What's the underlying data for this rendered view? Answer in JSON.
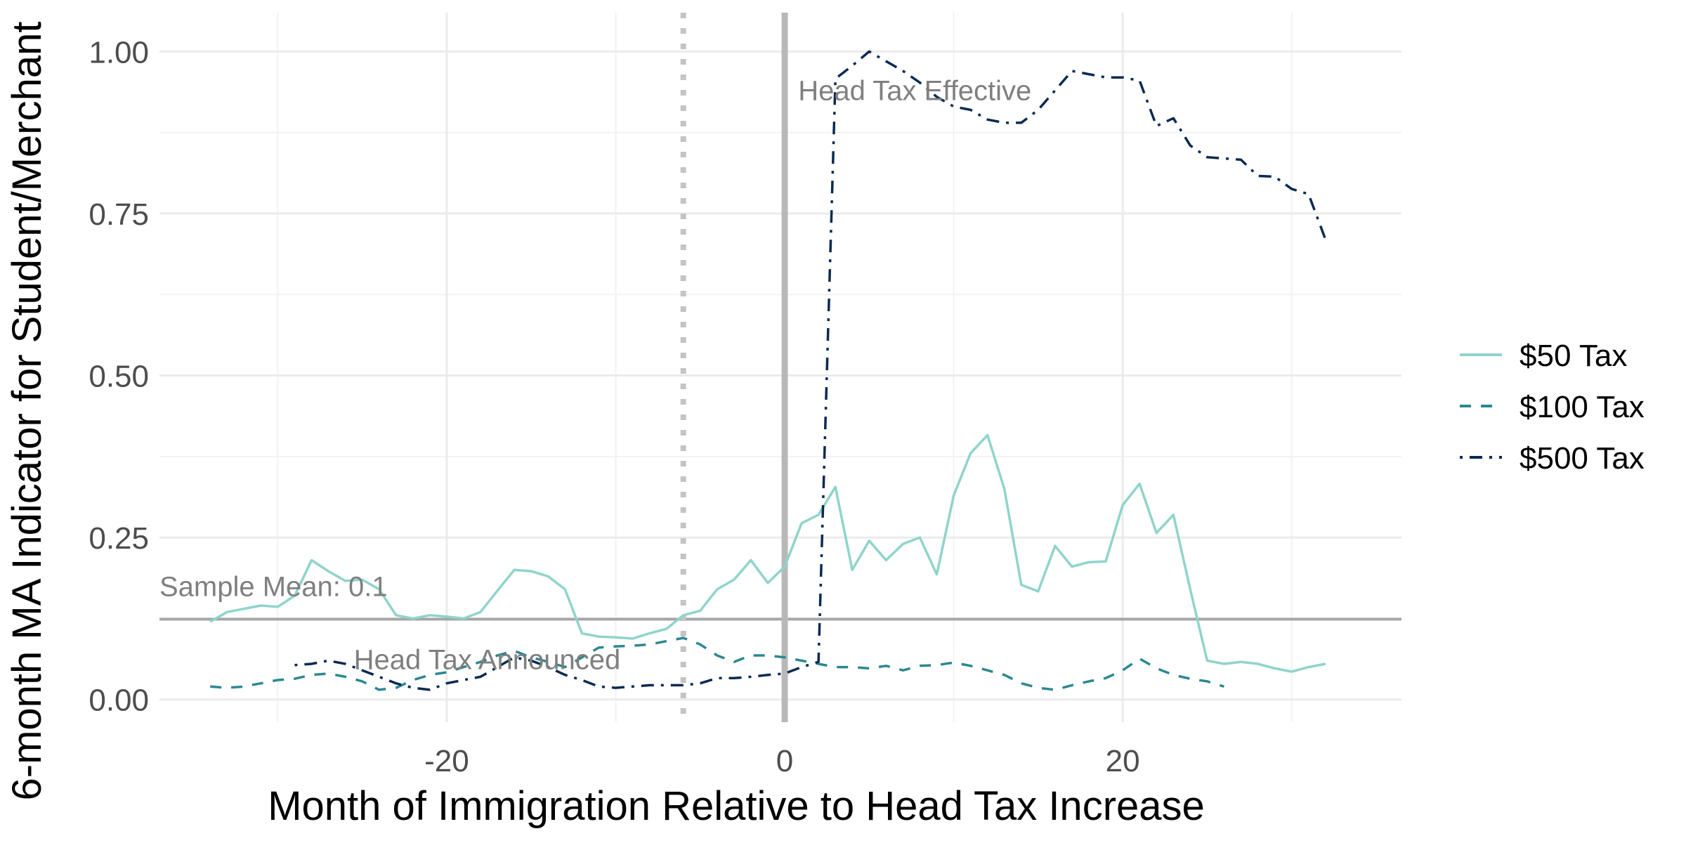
{
  "chart_data": {
    "type": "line",
    "title": "",
    "xlabel": "Month of Immigration Relative to Head Tax Increase",
    "ylabel": "6-month MA Indicator for Student/Merchant",
    "xlim": [
      -37,
      36.5
    ],
    "ylim": [
      -0.035,
      1.06
    ],
    "x_ticks": [
      -20,
      0,
      20
    ],
    "x_tick_labels": [
      "-20",
      "0",
      "20"
    ],
    "y_ticks": [
      0,
      0.25,
      0.5,
      0.75,
      1.0
    ],
    "y_tick_labels": [
      "0.00",
      "0.25",
      "0.50",
      "0.75",
      "1.00"
    ],
    "grid": true,
    "legend_position": "right",
    "series": [
      {
        "name": "$50 Tax",
        "color": "#8fd4cb",
        "dash": "solid",
        "x": [
          -34,
          -33,
          -32,
          -31,
          -30,
          -29,
          -28,
          -27,
          -26,
          -25,
          -24,
          -23,
          -22,
          -21,
          -20,
          -19,
          -18,
          -17,
          -16,
          -15,
          -14,
          -13,
          -12,
          -11,
          -10,
          -9,
          -8,
          -7,
          -6,
          -5,
          -4,
          -3,
          -2,
          -1,
          0,
          1,
          2,
          3,
          4,
          5,
          6,
          7,
          8,
          9,
          10,
          11,
          12,
          13,
          14,
          15,
          16,
          17,
          18,
          19,
          20,
          21,
          22,
          23,
          24,
          25,
          26,
          27,
          28,
          29,
          30,
          31,
          32
        ],
        "y": [
          0.12,
          0.135,
          0.14,
          0.145,
          0.143,
          0.16,
          0.215,
          0.198,
          0.183,
          0.185,
          0.17,
          0.13,
          0.125,
          0.13,
          0.128,
          0.125,
          0.135,
          0.168,
          0.2,
          0.198,
          0.19,
          0.17,
          0.102,
          0.097,
          0.096,
          0.094,
          0.102,
          0.109,
          0.13,
          0.137,
          0.17,
          0.185,
          0.215,
          0.18,
          0.205,
          0.272,
          0.285,
          0.328,
          0.2,
          0.245,
          0.215,
          0.24,
          0.25,
          0.193,
          0.315,
          0.38,
          0.408,
          0.325,
          0.177,
          0.167,
          0.237,
          0.205,
          0.212,
          0.213,
          0.3,
          0.333,
          0.257,
          0.285,
          0.17,
          0.06,
          0.055,
          0.058,
          0.055,
          0.048,
          0.043,
          0.05,
          0.055
        ]
      },
      {
        "name": "$100 Tax",
        "color": "#2b8890",
        "dash": "dashed",
        "x": [
          -34,
          -33,
          -32,
          -31,
          -30,
          -29,
          -28,
          -27,
          -26,
          -25,
          -24,
          -23,
          -22,
          -21,
          -20,
          -19,
          -18,
          -17,
          -16,
          -15,
          -14,
          -13,
          -12,
          -11,
          -10,
          -9,
          -8,
          -7,
          -6,
          -5,
          -4,
          -3,
          -2,
          -1,
          0,
          1,
          2,
          3,
          4,
          5,
          6,
          7,
          8,
          9,
          10,
          11,
          12,
          13,
          14,
          15,
          16,
          17,
          18,
          19,
          20,
          21,
          22,
          23,
          24,
          25,
          26
        ],
        "y": [
          0.02,
          0.018,
          0.02,
          0.025,
          0.03,
          0.032,
          0.038,
          0.04,
          0.035,
          0.028,
          0.015,
          0.018,
          0.03,
          0.038,
          0.042,
          0.05,
          0.058,
          0.068,
          0.075,
          0.065,
          0.058,
          0.05,
          0.065,
          0.08,
          0.082,
          0.083,
          0.085,
          0.09,
          0.095,
          0.085,
          0.068,
          0.058,
          0.068,
          0.068,
          0.065,
          0.06,
          0.055,
          0.05,
          0.05,
          0.048,
          0.052,
          0.045,
          0.052,
          0.053,
          0.057,
          0.052,
          0.045,
          0.038,
          0.025,
          0.018,
          0.015,
          0.022,
          0.028,
          0.033,
          0.045,
          0.063,
          0.048,
          0.038,
          0.032,
          0.028,
          0.02
        ]
      },
      {
        "name": "$500 Tax",
        "color": "#0b2a52",
        "dash": "dashdot",
        "x": [
          -29,
          -28,
          -27,
          -26,
          -25,
          -24,
          -23,
          -22,
          -21,
          -20,
          -19,
          -18,
          -17,
          -16,
          -15,
          -14,
          -13,
          -12,
          -11,
          -10,
          -9,
          -8,
          -7,
          -6,
          -5,
          -4,
          -3,
          -2,
          -1,
          0,
          1,
          2,
          3,
          4,
          5,
          6,
          7,
          8,
          9,
          10,
          11,
          12,
          13,
          14,
          15,
          16,
          17,
          18,
          19,
          20,
          21,
          22,
          23,
          24,
          25,
          26,
          27,
          28,
          29,
          30,
          31,
          32
        ],
        "y": [
          0.053,
          0.055,
          0.06,
          0.055,
          0.045,
          0.035,
          0.025,
          0.018,
          0.015,
          0.025,
          0.03,
          0.035,
          0.05,
          0.065,
          0.06,
          0.05,
          0.038,
          0.03,
          0.02,
          0.018,
          0.02,
          0.022,
          0.022,
          0.022,
          0.025,
          0.033,
          0.033,
          0.035,
          0.038,
          0.04,
          0.05,
          0.058,
          0.958,
          0.978,
          1.0,
          0.985,
          0.97,
          0.952,
          0.93,
          0.915,
          0.91,
          0.895,
          0.89,
          0.89,
          0.91,
          0.94,
          0.97,
          0.965,
          0.96,
          0.96,
          0.955,
          0.885,
          0.897,
          0.855,
          0.837,
          0.835,
          0.833,
          0.808,
          0.807,
          0.788,
          0.78,
          0.71
        ]
      }
    ],
    "reference_lines": {
      "sample_mean": {
        "y": 0.124,
        "label": "Sample Mean: 0.1",
        "label_x": -37,
        "label_y": 0.175
      },
      "announced": {
        "x": -6,
        "label": "Head Tax Announced",
        "label_x": -25.5,
        "label_y": 0.062
      },
      "effective": {
        "x": 0,
        "label": "Head Tax Effective",
        "label_x": 0.8,
        "label_y": 0.94
      }
    }
  }
}
